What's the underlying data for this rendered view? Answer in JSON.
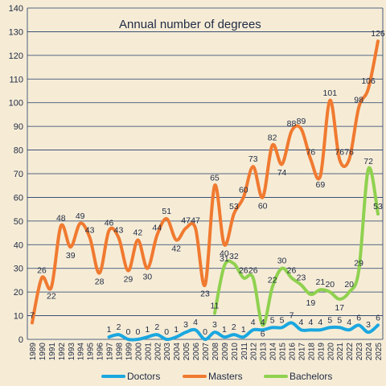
{
  "chart_data": {
    "type": "line",
    "title": "Annual number of degrees",
    "xlabel": "",
    "ylabel": "",
    "ylim": [
      0,
      140
    ],
    "yticks": [
      0,
      10,
      20,
      30,
      40,
      50,
      60,
      70,
      80,
      90,
      100,
      110,
      120,
      130,
      140
    ],
    "grid": true,
    "legend_position": "bottom",
    "categories": [
      "1989",
      "1990",
      "1991",
      "1992",
      "1993",
      "1994",
      "1995",
      "1996",
      "1997",
      "1998",
      "1999",
      "2000",
      "2001",
      "2002",
      "2003",
      "2004",
      "2005",
      "2006",
      "2007",
      "2008",
      "2009",
      "2010",
      "2011",
      "2012",
      "2013",
      "2014",
      "2015",
      "2016",
      "2017",
      "2018",
      "2019",
      "2020",
      "2021",
      "2022",
      "2023",
      "2024",
      "2025"
    ],
    "series": [
      {
        "name": "Doctors",
        "color": "#1aa7e0",
        "values": [
          null,
          null,
          null,
          null,
          null,
          null,
          null,
          null,
          1,
          2,
          0,
          0,
          1,
          2,
          0,
          1,
          3,
          4,
          0,
          3,
          1,
          2,
          1,
          4,
          4,
          5,
          5,
          7,
          4,
          4,
          4,
          5,
          5,
          4,
          6,
          3,
          6
        ]
      },
      {
        "name": "Masters",
        "color": "#f07a30",
        "values": [
          7,
          26,
          22,
          48,
          39,
          49,
          43,
          28,
          46,
          43,
          29,
          42,
          30,
          44,
          51,
          42,
          47,
          47,
          23,
          65,
          40,
          53,
          60,
          73,
          60,
          82,
          74,
          88,
          89,
          76,
          69,
          101,
          76,
          76,
          98,
          106,
          126
        ]
      },
      {
        "name": "Bachelors",
        "color": "#8fd14f",
        "values": [
          null,
          null,
          null,
          null,
          null,
          null,
          null,
          null,
          null,
          null,
          null,
          null,
          null,
          null,
          null,
          null,
          null,
          null,
          null,
          11,
          31,
          32,
          26,
          26,
          6,
          22,
          30,
          26,
          23,
          19,
          21,
          20,
          17,
          20,
          29,
          72,
          53
        ]
      }
    ]
  }
}
